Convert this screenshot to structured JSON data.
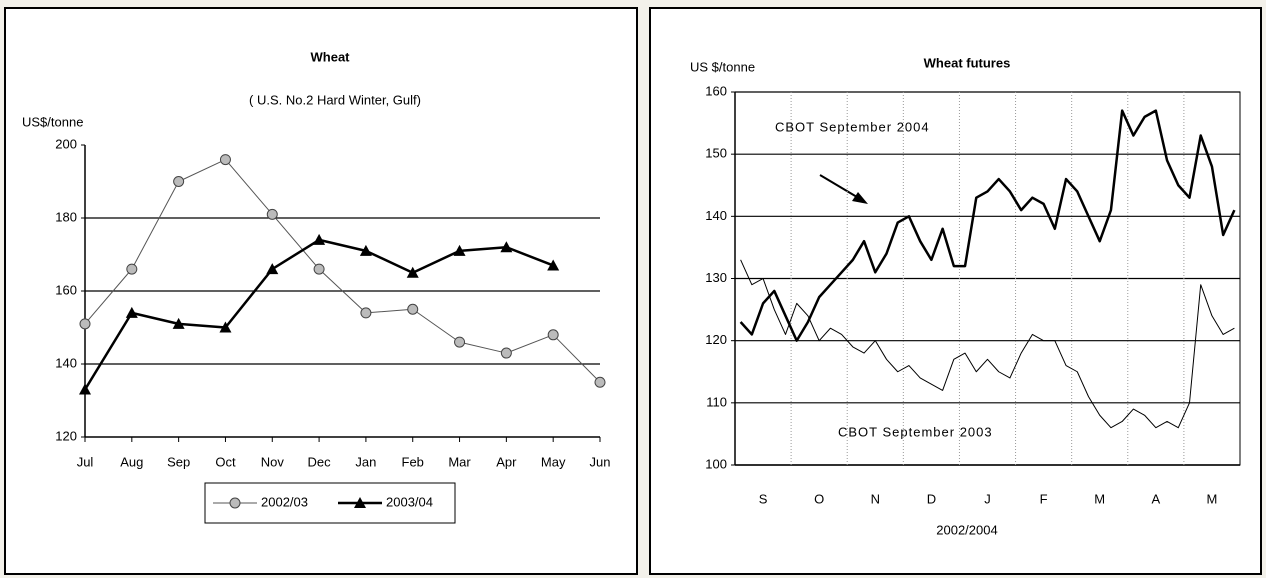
{
  "chart_data": [
    {
      "type": "line",
      "title": "Wheat",
      "subtitle": "( U.S. No.2 Hard Winter, Gulf)",
      "ylabel": "US$/tonne",
      "categories": [
        "Jul",
        "Aug",
        "Sep",
        "Oct",
        "Nov",
        "Dec",
        "Jan",
        "Feb",
        "Mar",
        "Apr",
        "May",
        "Jun"
      ],
      "series": [
        {
          "name": "2002/03",
          "color": "#555555",
          "marker": "circle",
          "marker_color": "#bbbbbb",
          "line_width": 1,
          "values": [
            151,
            166,
            190,
            196,
            181,
            166,
            154,
            155,
            146,
            143,
            148,
            135
          ]
        },
        {
          "name": "2003/04",
          "color": "#000000",
          "marker": "triangle",
          "marker_color": "#000000",
          "line_width": 2.5,
          "values": [
            133,
            154,
            151,
            150,
            166,
            174,
            171,
            165,
            171,
            172,
            167,
            null
          ]
        }
      ],
      "ylim": [
        120,
        200
      ],
      "yticks": [
        120,
        140,
        160,
        180,
        200
      ],
      "grid": true,
      "legend": "bottom"
    },
    {
      "type": "line",
      "title": "Wheat futures",
      "ylabel": "US $/tonne",
      "xlabel": "2002/2004",
      "categories": [
        null,
        null,
        "S",
        null,
        null,
        null,
        null,
        "O",
        null,
        null,
        null,
        null,
        "N",
        null,
        null,
        null,
        null,
        "D",
        null,
        null,
        null,
        null,
        "J",
        null,
        null,
        null,
        null,
        "F",
        null,
        null,
        null,
        null,
        "M",
        null,
        null,
        null,
        null,
        "A",
        null,
        null,
        null,
        null,
        "M",
        null,
        null
      ],
      "series": [
        {
          "name": "CBOT September 2004",
          "color": "#000000",
          "line_width": 2.5,
          "values": [
            123,
            121,
            126,
            128,
            124,
            120,
            123,
            127,
            129,
            131,
            133,
            136,
            131,
            134,
            139,
            140,
            136,
            133,
            138,
            132,
            132,
            143,
            144,
            146,
            144,
            141,
            143,
            142,
            138,
            146,
            144,
            140,
            136,
            141,
            157,
            153,
            156,
            157,
            149,
            145,
            143,
            153,
            148,
            137,
            141
          ]
        },
        {
          "name": "CBOT September 2003",
          "color": "#000000",
          "line_width": 1,
          "values": [
            133,
            129,
            130,
            125,
            121,
            126,
            124,
            120,
            122,
            121,
            119,
            118,
            120,
            117,
            115,
            116,
            114,
            113,
            112,
            117,
            118,
            115,
            117,
            115,
            114,
            118,
            121,
            120,
            120,
            116,
            115,
            111,
            108,
            106,
            107,
            109,
            108,
            106,
            107,
            106,
            110,
            129,
            124,
            121,
            122
          ]
        }
      ],
      "ylim": [
        100,
        160
      ],
      "yticks": [
        100,
        110,
        120,
        130,
        140,
        150,
        160
      ],
      "grid": true,
      "legend": false
    }
  ]
}
